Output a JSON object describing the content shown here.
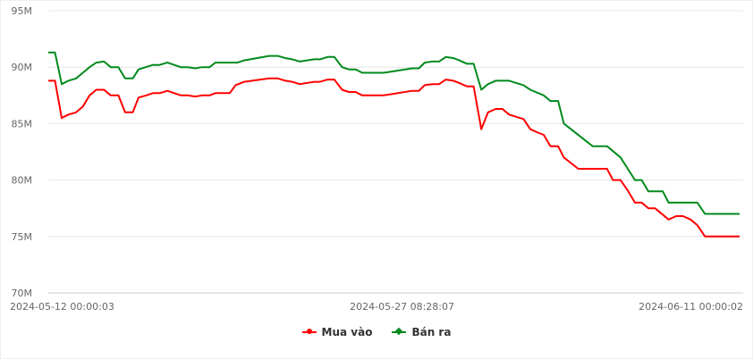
{
  "chart_data": {
    "type": "line",
    "title": "",
    "xlabel": "",
    "ylabel": "",
    "ylim": [
      70000000,
      95000000
    ],
    "yticks": [
      {
        "value": 70000000,
        "label": "70M"
      },
      {
        "value": 75000000,
        "label": "75M"
      },
      {
        "value": 80000000,
        "label": "80M"
      },
      {
        "value": 85000000,
        "label": "85M"
      },
      {
        "value": 90000000,
        "label": "90M"
      },
      {
        "value": 95000000,
        "label": "95M"
      }
    ],
    "xlim": [
      "2024-05-12 00:00:03",
      "2024-06-11 00:00:02"
    ],
    "xticks": [
      {
        "value": "2024-05-12 00:00:03",
        "label": "2024-05-12 00:00:03"
      },
      {
        "value": "2024-05-27 08:28:07",
        "label": "2024-05-27 08:28:07"
      },
      {
        "value": "2024-06-11 00:00:02",
        "label": "2024-06-11 00:00:02"
      }
    ],
    "grid": true,
    "legend_position": "bottom",
    "series": [
      {
        "name": "Mua vào",
        "color": "#ff0000",
        "marker": "circle",
        "points": [
          [
            "2024-05-12 00:00",
            88.8
          ],
          [
            "2024-05-12 07:00",
            88.8
          ],
          [
            "2024-05-12 14:00",
            85.5
          ],
          [
            "2024-05-12 21:00",
            85.8
          ],
          [
            "2024-05-13 05:00",
            86.0
          ],
          [
            "2024-05-13 12:00",
            86.5
          ],
          [
            "2024-05-13 19:00",
            87.5
          ],
          [
            "2024-05-14 02:00",
            88.0
          ],
          [
            "2024-05-14 10:00",
            88.0
          ],
          [
            "2024-05-14 17:00",
            87.5
          ],
          [
            "2024-05-15 01:00",
            87.5
          ],
          [
            "2024-05-15 08:00",
            86.0
          ],
          [
            "2024-05-15 16:00",
            86.0
          ],
          [
            "2024-05-15 22:00",
            87.3
          ],
          [
            "2024-05-16 06:00",
            87.5
          ],
          [
            "2024-05-16 13:00",
            87.7
          ],
          [
            "2024-05-16 20:00",
            87.7
          ],
          [
            "2024-05-17 04:00",
            87.9
          ],
          [
            "2024-05-17 18:00",
            87.5
          ],
          [
            "2024-05-18 01:00",
            87.5
          ],
          [
            "2024-05-18 09:00",
            87.4
          ],
          [
            "2024-05-18 16:00",
            87.5
          ],
          [
            "2024-05-19 00:00",
            87.5
          ],
          [
            "2024-05-19 06:00",
            87.7
          ],
          [
            "2024-05-19 21:00",
            87.7
          ],
          [
            "2024-05-20 03:00",
            88.4
          ],
          [
            "2024-05-20 12:00",
            88.7
          ],
          [
            "2024-05-21 14:00",
            89.0
          ],
          [
            "2024-05-21 23:00",
            89.0
          ],
          [
            "2024-05-22 07:00",
            88.8
          ],
          [
            "2024-05-22 14:00",
            88.7
          ],
          [
            "2024-05-22 22:00",
            88.5
          ],
          [
            "2024-05-23 13:00",
            88.7
          ],
          [
            "2024-05-23 19:00",
            88.7
          ],
          [
            "2024-05-24 03:00",
            88.9
          ],
          [
            "2024-05-24 10:00",
            88.9
          ],
          [
            "2024-05-24 18:00",
            88.0
          ],
          [
            "2024-05-25 01:00",
            87.8
          ],
          [
            "2024-05-25 08:00",
            87.8
          ],
          [
            "2024-05-25 15:00",
            87.5
          ],
          [
            "2024-05-26 13:00",
            87.5
          ],
          [
            "2024-05-26 21:00",
            87.6
          ],
          [
            "2024-05-27 19:00",
            87.9
          ],
          [
            "2024-05-28 02:00",
            87.9
          ],
          [
            "2024-05-28 08:00",
            88.4
          ],
          [
            "2024-05-28 16:00",
            88.5
          ],
          [
            "2024-05-28 23:00",
            88.5
          ],
          [
            "2024-05-29 06:00",
            88.9
          ],
          [
            "2024-05-29 14:00",
            88.8
          ],
          [
            "2024-05-29 20:00",
            88.6
          ],
          [
            "2024-05-30 04:00",
            88.3
          ],
          [
            "2024-05-30 11:00",
            88.3
          ],
          [
            "2024-05-30 19:00",
            84.5
          ],
          [
            "2024-05-31 02:00",
            86.0
          ],
          [
            "2024-05-31 10:00",
            86.3
          ],
          [
            "2024-05-31 17:00",
            86.3
          ],
          [
            "2024-06-01 00:00",
            85.8
          ],
          [
            "2024-06-01 15:00",
            85.4
          ],
          [
            "2024-06-01 22:00",
            84.5
          ],
          [
            "2024-06-02 06:00",
            84.2
          ],
          [
            "2024-06-02 12:00",
            84.0
          ],
          [
            "2024-06-02 19:00",
            83.0
          ],
          [
            "2024-06-03 03:00",
            83.0
          ],
          [
            "2024-06-03 09:00",
            82.0
          ],
          [
            "2024-06-04 00:00",
            81.0
          ],
          [
            "2024-06-05 06:00",
            81.0
          ],
          [
            "2024-06-05 12:00",
            80.0
          ],
          [
            "2024-06-05 20:00",
            80.0
          ],
          [
            "2024-06-06 04:00",
            79.0
          ],
          [
            "2024-06-06 11:00",
            78.0
          ],
          [
            "2024-06-06 18:00",
            78.0
          ],
          [
            "2024-06-07 01:00",
            77.5
          ],
          [
            "2024-06-07 08:00",
            77.5
          ],
          [
            "2024-06-07 22:00",
            76.5
          ],
          [
            "2024-06-08 06:00",
            76.8
          ],
          [
            "2024-06-08 13:00",
            76.8
          ],
          [
            "2024-06-08 21:00",
            76.5
          ],
          [
            "2024-06-09 04:00",
            76.0
          ],
          [
            "2024-06-09 12:00",
            75.0
          ],
          [
            "2024-06-11 00:00",
            75.0
          ]
        ]
      },
      {
        "name": "Bán ra",
        "color": "#008a1c",
        "marker": "diamond",
        "points": [
          [
            "2024-05-12 00:00",
            91.3
          ],
          [
            "2024-05-12 07:00",
            91.3
          ],
          [
            "2024-05-12 14:00",
            88.5
          ],
          [
            "2024-05-12 21:00",
            88.8
          ],
          [
            "2024-05-13 05:00",
            89.0
          ],
          [
            "2024-05-13 12:00",
            89.5
          ],
          [
            "2024-05-13 19:00",
            90.0
          ],
          [
            "2024-05-14 02:00",
            90.4
          ],
          [
            "2024-05-14 10:00",
            90.5
          ],
          [
            "2024-05-14 17:00",
            90.0
          ],
          [
            "2024-05-15 01:00",
            90.0
          ],
          [
            "2024-05-15 08:00",
            89.0
          ],
          [
            "2024-05-15 16:00",
            89.0
          ],
          [
            "2024-05-15 22:00",
            89.8
          ],
          [
            "2024-05-16 13:00",
            90.2
          ],
          [
            "2024-05-16 20:00",
            90.2
          ],
          [
            "2024-05-17 04:00",
            90.4
          ],
          [
            "2024-05-17 18:00",
            90.0
          ],
          [
            "2024-05-18 01:00",
            90.0
          ],
          [
            "2024-05-18 09:00",
            89.9
          ],
          [
            "2024-05-18 16:00",
            90.0
          ],
          [
            "2024-05-19 00:00",
            90.0
          ],
          [
            "2024-05-19 06:00",
            90.4
          ],
          [
            "2024-05-20 05:00",
            90.4
          ],
          [
            "2024-05-20 12:00",
            90.6
          ],
          [
            "2024-05-21 14:00",
            91.0
          ],
          [
            "2024-05-21 23:00",
            91.0
          ],
          [
            "2024-05-22 07:00",
            90.8
          ],
          [
            "2024-05-22 14:00",
            90.7
          ],
          [
            "2024-05-22 22:00",
            90.5
          ],
          [
            "2024-05-23 13:00",
            90.7
          ],
          [
            "2024-05-23 19:00",
            90.7
          ],
          [
            "2024-05-24 03:00",
            90.9
          ],
          [
            "2024-05-24 10:00",
            90.9
          ],
          [
            "2024-05-24 18:00",
            90.0
          ],
          [
            "2024-05-25 01:00",
            89.8
          ],
          [
            "2024-05-25 08:00",
            89.8
          ],
          [
            "2024-05-25 15:00",
            89.5
          ],
          [
            "2024-05-26 13:00",
            89.5
          ],
          [
            "2024-05-26 21:00",
            89.6
          ],
          [
            "2024-05-27 19:00",
            89.9
          ],
          [
            "2024-05-28 02:00",
            89.9
          ],
          [
            "2024-05-28 08:00",
            90.4
          ],
          [
            "2024-05-28 16:00",
            90.5
          ],
          [
            "2024-05-28 23:00",
            90.5
          ],
          [
            "2024-05-29 06:00",
            90.9
          ],
          [
            "2024-05-29 14:00",
            90.8
          ],
          [
            "2024-05-29 20:00",
            90.6
          ],
          [
            "2024-05-30 04:00",
            90.3
          ],
          [
            "2024-05-30 11:00",
            90.3
          ],
          [
            "2024-05-30 19:00",
            88.0
          ],
          [
            "2024-05-31 02:00",
            88.5
          ],
          [
            "2024-05-31 10:00",
            88.8
          ],
          [
            "2024-06-01 00:00",
            88.8
          ],
          [
            "2024-06-01 15:00",
            88.4
          ],
          [
            "2024-06-01 22:00",
            88.0
          ],
          [
            "2024-06-02 12:00",
            87.5
          ],
          [
            "2024-06-02 19:00",
            87.0
          ],
          [
            "2024-06-03 03:00",
            87.0
          ],
          [
            "2024-06-03 09:00",
            85.0
          ],
          [
            "2024-06-04 15:00",
            83.0
          ],
          [
            "2024-06-05 06:00",
            83.0
          ],
          [
            "2024-06-05 20:00",
            82.0
          ],
          [
            "2024-06-06 11:00",
            80.0
          ],
          [
            "2024-06-06 18:00",
            80.0
          ],
          [
            "2024-06-07 01:00",
            79.0
          ],
          [
            "2024-06-07 16:00",
            79.0
          ],
          [
            "2024-06-07 22:00",
            78.0
          ],
          [
            "2024-06-09 04:00",
            78.0
          ],
          [
            "2024-06-09 12:00",
            77.0
          ],
          [
            "2024-06-11 00:00",
            77.0
          ]
        ]
      }
    ]
  }
}
